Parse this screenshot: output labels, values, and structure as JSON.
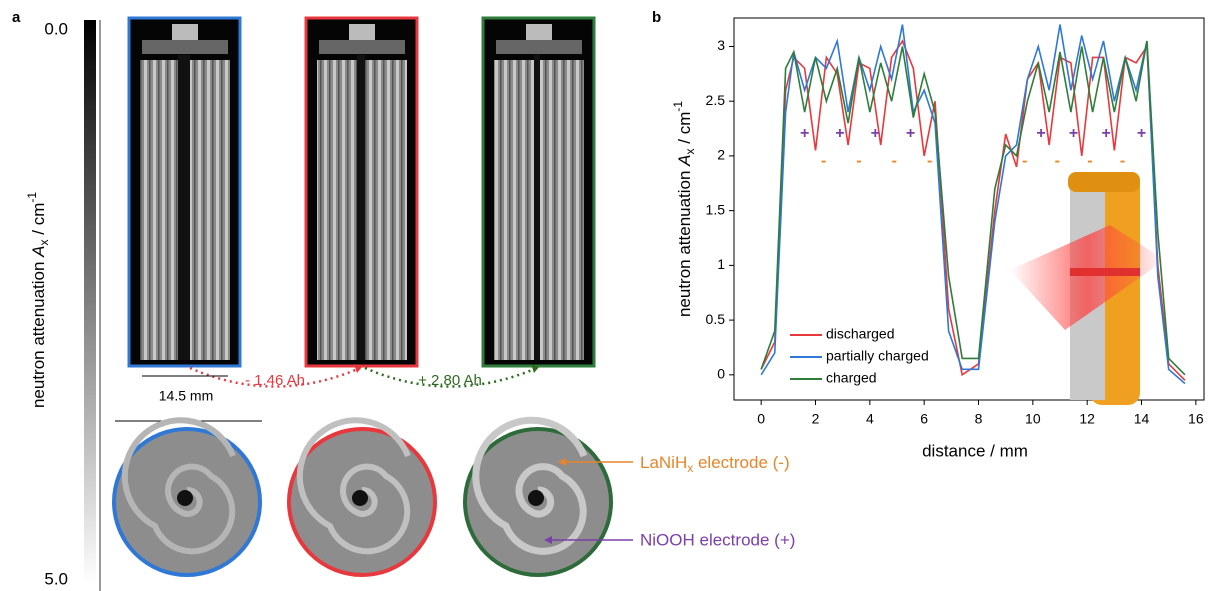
{
  "panel_a": {
    "letter": "a",
    "colorbar": {
      "top": "0.0",
      "bottom": "5.0",
      "label": {
        "main": "neutron attenuation ",
        "symbol": "A",
        "sub": "x",
        "unit": " / cm",
        "sup": "-1"
      }
    },
    "arrow_1": "- 1.46 Ah",
    "arrow_2": "+ 2.80 Ah",
    "scale": "14.5 mm",
    "callout_1": {
      "main": "LaNiH",
      "sub": "x",
      "rest": " electrode (-)"
    },
    "callout_2": "NiOOH electrode (+)"
  },
  "chart_data": {
    "type": "line",
    "letter": "b",
    "x_label": "distance / mm",
    "y_label": {
      "main": "neutron attenuation ",
      "symbol": "A",
      "sub": "x",
      "unit": " / cm",
      "sup": "-1"
    },
    "x": [
      0,
      0.5,
      0.9,
      1.2,
      1.6,
      2.0,
      2.4,
      2.8,
      3.2,
      3.6,
      4.0,
      4.4,
      4.8,
      5.2,
      5.6,
      6.0,
      6.4,
      6.9,
      7.4,
      8.0,
      8.6,
      9.0,
      9.4,
      9.8,
      10.2,
      10.6,
      11.0,
      11.4,
      11.8,
      12.2,
      12.6,
      13.0,
      13.4,
      13.8,
      14.2,
      14.6,
      15.0,
      15.6
    ],
    "series": [
      {
        "name": "discharged",
        "color": "#e8383d",
        "values": [
          0.05,
          0.3,
          2.6,
          2.9,
          2.8,
          2.05,
          2.9,
          2.75,
          2.1,
          2.85,
          2.8,
          2.1,
          2.9,
          3.05,
          2.8,
          2.0,
          2.5,
          0.6,
          0.0,
          0.1,
          1.5,
          2.2,
          1.9,
          2.7,
          2.85,
          2.1,
          2.9,
          2.85,
          2.0,
          2.9,
          2.9,
          2.05,
          2.9,
          2.85,
          3.0,
          1.0,
          0.1,
          -0.05
        ]
      },
      {
        "name": "partially charged",
        "color": "#2f78d6",
        "values": [
          0.0,
          0.2,
          2.4,
          2.95,
          2.6,
          2.9,
          2.8,
          3.05,
          2.4,
          2.9,
          2.6,
          3.0,
          2.7,
          3.2,
          2.4,
          2.6,
          2.3,
          0.4,
          0.05,
          0.05,
          1.4,
          2.0,
          2.1,
          2.7,
          3.0,
          2.6,
          3.2,
          2.6,
          3.1,
          2.7,
          3.05,
          2.5,
          2.9,
          2.6,
          3.05,
          0.9,
          0.05,
          -0.08
        ]
      },
      {
        "name": "charged",
        "color": "#2e7d3a",
        "values": [
          0.05,
          0.4,
          2.8,
          2.95,
          2.4,
          2.9,
          2.5,
          2.8,
          2.3,
          2.9,
          2.4,
          2.85,
          2.5,
          3.0,
          2.35,
          2.75,
          2.4,
          0.9,
          0.15,
          0.15,
          1.7,
          2.1,
          2.0,
          2.5,
          2.85,
          2.4,
          2.95,
          2.4,
          3.0,
          2.4,
          2.9,
          2.4,
          2.9,
          2.5,
          3.05,
          1.3,
          0.15,
          0.0
        ]
      }
    ],
    "xlim": [
      -1,
      16.3
    ],
    "ylim": [
      -0.23,
      3.26
    ],
    "xticks": [
      0,
      2,
      4,
      6,
      8,
      10,
      12,
      14,
      16
    ],
    "yticks": [
      0,
      0.5,
      1,
      1.5,
      2,
      2.5,
      3
    ],
    "plus_signs": {
      "text": "+",
      "color": "#7b3fa8",
      "y": 2.2,
      "x": [
        1.6,
        2.9,
        4.2,
        5.5,
        10.3,
        11.5,
        12.7,
        14.0
      ]
    },
    "minus_signs": {
      "text": "-",
      "color": "#e8852a",
      "y": 1.95,
      "x": [
        2.3,
        3.6,
        4.9,
        6.2,
        9.7,
        10.9,
        12.1,
        13.3
      ]
    }
  }
}
